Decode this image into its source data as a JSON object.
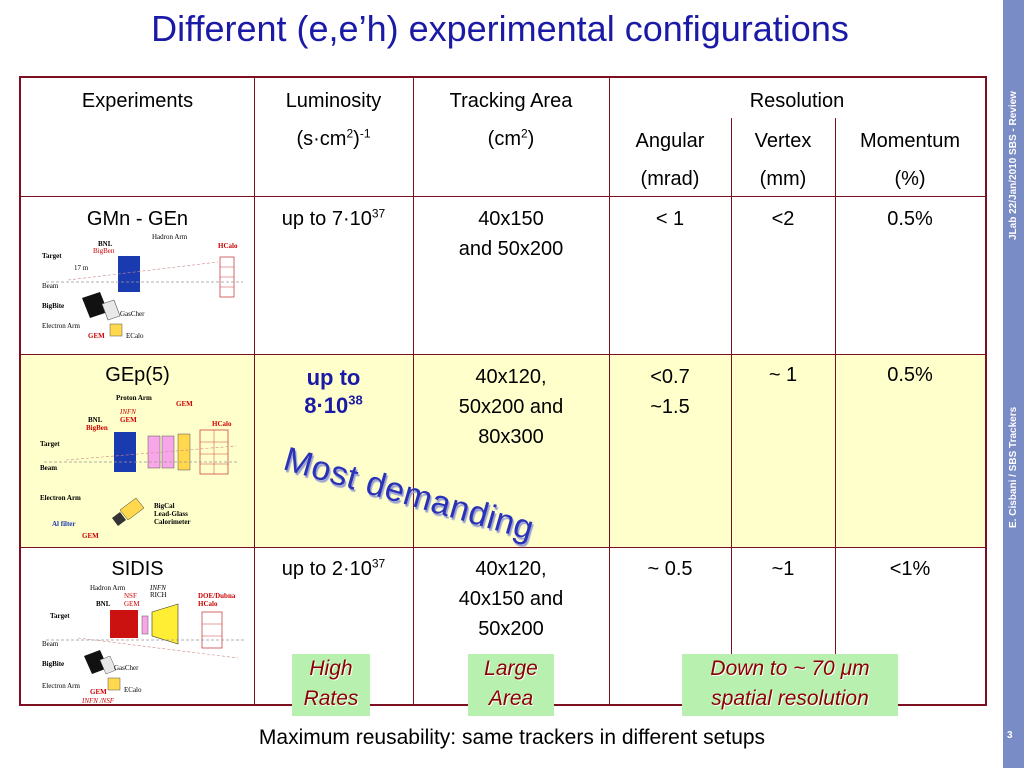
{
  "title": "Different (e,e’h) experimental configurations",
  "sidebar": {
    "review": "JLab 22/Jan/2010 SBS - Review",
    "author": "E. Cisbani / SBS Trackers",
    "page": "3"
  },
  "table": {
    "headers": {
      "experiments": "Experiments",
      "luminosity": "Luminosity",
      "luminosity_unit_a": "(s·cm",
      "luminosity_unit_sup1": "2",
      "luminosity_unit_b": ")",
      "luminosity_unit_sup2": "-1",
      "tracking": "Tracking Area",
      "tracking_unit_a": "(cm",
      "tracking_unit_sup": "2",
      "tracking_unit_b": ")",
      "resolution": "Resolution",
      "angular": "Angular",
      "angular_unit": "(mrad)",
      "vertex": "Vertex",
      "vertex_unit": "(mm)",
      "momentum": "Momentum",
      "momentum_unit": "(%)"
    },
    "rows": [
      {
        "name": "GMn - GEn",
        "lum_base": "up to 7·10",
        "lum_exp": "37",
        "tracking": [
          "40x150",
          "and 50x200"
        ],
        "angular": [
          "< 1"
        ],
        "vertex": [
          "<2"
        ],
        "momentum": [
          "0.5%"
        ],
        "diagram_labels": {
          "hadron_arm": "Hadron Arm",
          "bnl": "BNL",
          "bigben": "BigBen",
          "hcalo": "HCalo",
          "target": "Target",
          "beam": "Beam",
          "bigbite": "BigBite",
          "gascher": "GasCher",
          "electron_arm": "Electron Arm",
          "gem": "GEM",
          "ecalo": "ECalo",
          "dist": "17 m"
        }
      },
      {
        "name": "GEp(5)",
        "lum_line1": "up to",
        "lum_base": "8·10",
        "lum_exp": "38",
        "tracking": [
          "40x120,",
          "50x200 and",
          "80x300"
        ],
        "angular": [
          "<0.7",
          "~1.5"
        ],
        "vertex": [
          "~ 1"
        ],
        "momentum": [
          "0.5%"
        ],
        "diagram_labels": {
          "proton_arm": "Proton Arm",
          "bnl": "BNL",
          "infn": "INFN",
          "gem_top": "GEM",
          "gem_right": "GEM",
          "bigben": "BigBen",
          "hcalo": "HCalo",
          "target": "Target",
          "beam": "Beam",
          "electron_arm": "Electron Arm",
          "bigcal": "BigCal",
          "leadglass": "Lead-Glass",
          "calorimeter": "Calorimeter",
          "al_filter": "Al filter",
          "gem_bottom": "GEM"
        }
      },
      {
        "name": "SIDIS",
        "lum_base": "up to 2·10",
        "lum_exp": "37",
        "tracking": [
          "40x120,",
          "40x150 and",
          "50x200"
        ],
        "angular": [
          "~ 0.5"
        ],
        "vertex": [
          "~1"
        ],
        "momentum": [
          "<1%"
        ],
        "diagram_labels": {
          "hadron_arm": "Hadron Arm",
          "infn": "INFN",
          "rich": "RICH",
          "bnl": "BNL",
          "nsf": "NSF",
          "gem": "GEM",
          "doe": "DOE/Dubna",
          "hcalo": "HCalo",
          "target": "Target",
          "beam": "Beam",
          "bigbite": "BigBite",
          "gascher": "GasCher",
          "electron_arm": "Electron Arm",
          "gem_bottom": "GEM",
          "infn_nsf": "INFN /NSF",
          "ecalo": "ECalo"
        }
      }
    ]
  },
  "annotation": "Most demanding",
  "tags": {
    "high_rates": [
      "High",
      "Rates"
    ],
    "large_area": [
      "Large",
      "Area"
    ],
    "spatial_a": "Down to ~ 70 ",
    "spatial_mu": "μ",
    "spatial_b": "m",
    "spatial_2": "spatial resolution"
  },
  "footer": "Maximum reusability: same trackers in different setups",
  "colors": {
    "title": "#1a1aa6",
    "border": "#7b1020",
    "highlight_row": "#ffffcc",
    "tag_bg": "#b8f0b0",
    "tag_text": "#8b0000",
    "sidebar": "#7a8cc6"
  }
}
